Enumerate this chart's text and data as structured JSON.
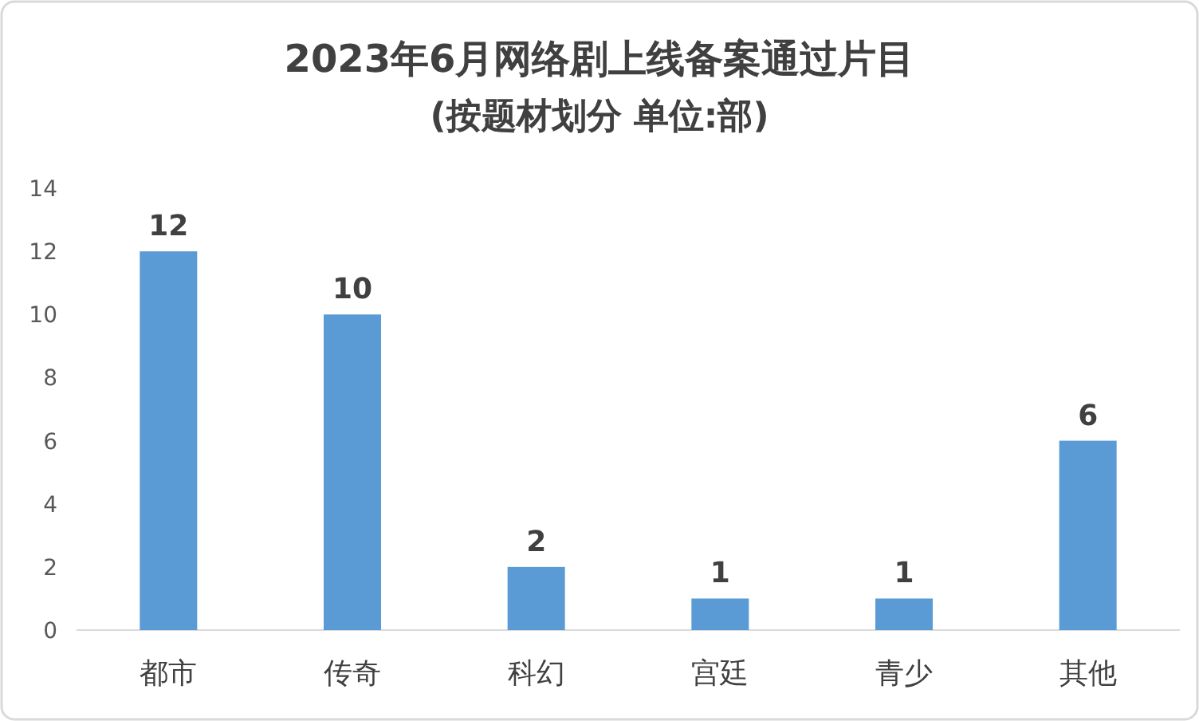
{
  "chart_data": {
    "type": "bar",
    "title": "2023年6月网络剧上线备案通过片目",
    "subtitle": "(按题材划分 单位:部)",
    "categories": [
      "都市",
      "传奇",
      "科幻",
      "宫廷",
      "青少",
      "其他"
    ],
    "values": [
      12,
      10,
      2,
      1,
      1,
      6
    ],
    "color": "#5b9bd5",
    "ylim": [
      0,
      14
    ],
    "yticks": [
      0,
      2,
      4,
      6,
      8,
      10,
      12,
      14
    ],
    "data_labels": true
  }
}
